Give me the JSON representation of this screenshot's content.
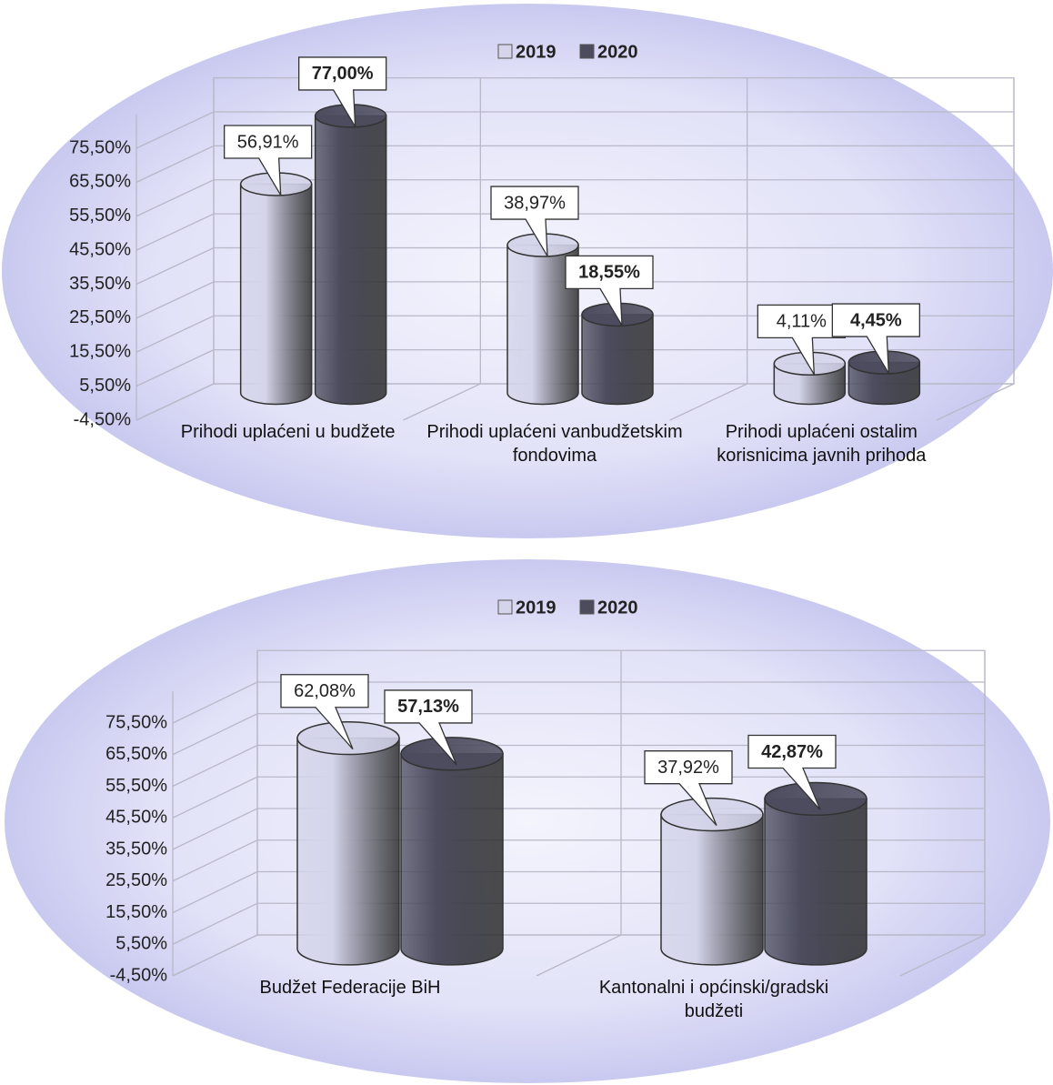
{
  "chart_data": [
    {
      "type": "bar",
      "categories": [
        "Prihodi uplaćeni u budžete",
        "Prihodi uplaćeni vanbudžetskim fondovima",
        "Prihodi uplaćeni ostalim korisnicima javnih prihoda"
      ],
      "series": [
        {
          "name": "2019",
          "color": "#d4d4ea",
          "values": [
            56.91,
            38.97,
            4.11
          ],
          "value_labels": [
            "56,91%",
            "38,97%",
            "4,11%"
          ]
        },
        {
          "name": "2020",
          "color": "#4c4c5e",
          "values": [
            77.0,
            18.55,
            4.45
          ],
          "value_labels": [
            "77,00%",
            "18,55%",
            "4,45%"
          ]
        }
      ],
      "ylim": [
        -4.5,
        85.5
      ],
      "yticks": [
        {
          "value": -4.5,
          "label": "-4,50%"
        },
        {
          "value": 5.5,
          "label": "5,50%"
        },
        {
          "value": 15.5,
          "label": "15,50%"
        },
        {
          "value": 25.5,
          "label": "25,50%"
        },
        {
          "value": 35.5,
          "label": "35,50%"
        },
        {
          "value": 45.5,
          "label": "45,50%"
        },
        {
          "value": 55.5,
          "label": "55,50%"
        },
        {
          "value": 65.5,
          "label": "65,50%"
        },
        {
          "value": 75.5,
          "label": "75,50%"
        }
      ],
      "grid": true,
      "legend": "top"
    },
    {
      "type": "bar",
      "categories": [
        "Budžet Federacije BiH",
        "Kantonalni i općinski/gradski budžeti"
      ],
      "series": [
        {
          "name": "2019",
          "color": "#d4d4ea",
          "values": [
            62.08,
            37.92
          ],
          "value_labels": [
            "62,08%",
            "37,92%"
          ]
        },
        {
          "name": "2020",
          "color": "#4c4c5e",
          "values": [
            57.13,
            42.87
          ],
          "value_labels": [
            "57,13%",
            "42,87%"
          ]
        }
      ],
      "ylim": [
        -4.5,
        85.5
      ],
      "yticks": [
        {
          "value": -4.5,
          "label": "-4,50%"
        },
        {
          "value": 5.5,
          "label": "5,50%"
        },
        {
          "value": 15.5,
          "label": "15,50%"
        },
        {
          "value": 25.5,
          "label": "25,50%"
        },
        {
          "value": 35.5,
          "label": "35,50%"
        },
        {
          "value": 45.5,
          "label": "45,50%"
        },
        {
          "value": 55.5,
          "label": "55,50%"
        },
        {
          "value": 65.5,
          "label": "65,50%"
        },
        {
          "value": 75.5,
          "label": "75,50%"
        }
      ],
      "grid": true,
      "legend": "top"
    }
  ]
}
